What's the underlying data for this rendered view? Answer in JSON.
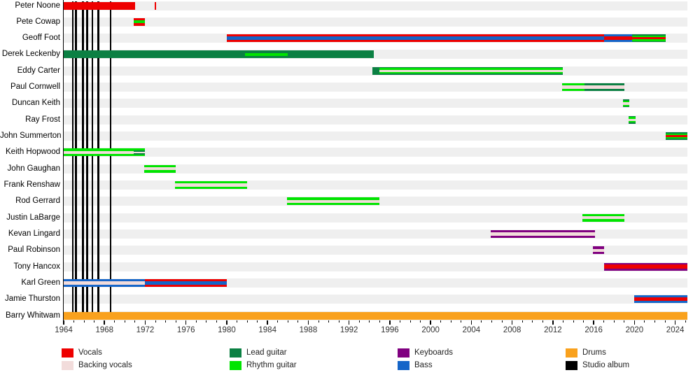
{
  "chart_data": {
    "type": "bar",
    "subtype": "band-member-timeline-gantt",
    "title": "",
    "xlabel": "",
    "ylabel": "",
    "x_axis": {
      "min": 1964,
      "max": 2025.2,
      "major_ticks": [
        1964,
        1968,
        1972,
        1976,
        1980,
        1984,
        1988,
        1992,
        1996,
        2000,
        2004,
        2008,
        2012,
        2016,
        2020,
        2024
      ],
      "minor_tick_step": 1,
      "grid": false
    },
    "roles": {
      "vocals": "#ee0000",
      "backing_vocals": "#f2dcdb",
      "lead_guitar": "#0b8043",
      "rhythm_guitar": "#00e400",
      "keyboards": "#800080",
      "bass": "#1565c8",
      "drums": "#f9a11d",
      "studio_album": "#000000"
    },
    "members": [
      {
        "name": "Peter Noone",
        "bars": [
          {
            "from": 1964.0,
            "to": 1971.0,
            "stripes": [
              [
                "vocals",
                1
              ]
            ]
          },
          {
            "from": 1972.9,
            "to": 1973.05,
            "stripes": [
              [
                "vocals",
                1
              ]
            ]
          }
        ]
      },
      {
        "name": "Pete Cowap",
        "bars": [
          {
            "from": 1970.9,
            "to": 1972.0,
            "stripes": [
              [
                "vocals",
                0.33
              ],
              [
                "rhythm_guitar",
                0.34
              ],
              [
                "vocals",
                0.33
              ]
            ]
          }
        ]
      },
      {
        "name": "Geoff Foot",
        "bars": [
          {
            "from": 1980.0,
            "to": 2017.0,
            "stripes": [
              [
                "vocals",
                0.3
              ],
              [
                "bass",
                0.4
              ],
              [
                "vocals",
                0.3
              ]
            ]
          },
          {
            "from": 2017.0,
            "to": 2019.8,
            "stripes": [
              [
                "bass",
                0.3
              ],
              [
                "vocals",
                0.4
              ],
              [
                "bass",
                0.3
              ]
            ]
          },
          {
            "from": 2019.8,
            "to": 2023.1,
            "stripes": [
              [
                "lead_guitar",
                0.14
              ],
              [
                "rhythm_guitar",
                0.2
              ],
              [
                "vocals",
                0.32
              ],
              [
                "rhythm_guitar",
                0.2
              ],
              [
                "lead_guitar",
                0.14
              ]
            ]
          }
        ]
      },
      {
        "name": "Derek Leckenby",
        "bars": [
          {
            "from": 1964.0,
            "to": 1994.4,
            "stripes": [
              [
                "lead_guitar",
                1
              ]
            ]
          },
          {
            "from": 1981.8,
            "to": 1986.0,
            "stripes": [
              [
                "lead_guitar",
                0.34
              ],
              [
                "rhythm_guitar",
                0.32
              ],
              [
                "lead_guitar",
                0.34
              ]
            ]
          }
        ]
      },
      {
        "name": "Eddy Carter",
        "bars": [
          {
            "from": 1994.3,
            "to": 1995.0,
            "stripes": [
              [
                "lead_guitar",
                1
              ]
            ]
          },
          {
            "from": 1995.0,
            "to": 2013.0,
            "stripes": [
              [
                "lead_guitar",
                0.15
              ],
              [
                "rhythm_guitar",
                0.2
              ],
              [
                "backing_vocals",
                0.3
              ],
              [
                "rhythm_guitar",
                0.2
              ],
              [
                "lead_guitar",
                0.15
              ]
            ]
          }
        ]
      },
      {
        "name": "Paul Cornwell",
        "bars": [
          {
            "from": 2012.9,
            "to": 2015.1,
            "stripes": [
              [
                "rhythm_guitar",
                0.3
              ],
              [
                "backing_vocals",
                0.4
              ],
              [
                "rhythm_guitar",
                0.3
              ]
            ]
          },
          {
            "from": 2015.1,
            "to": 2019.0,
            "stripes": [
              [
                "lead_guitar",
                0.3
              ],
              [
                "backing_vocals",
                0.4
              ],
              [
                "lead_guitar",
                0.3
              ]
            ]
          }
        ]
      },
      {
        "name": "Duncan Keith",
        "bars": [
          {
            "from": 2018.9,
            "to": 2019.5,
            "stripes": [
              [
                "lead_guitar",
                0.15
              ],
              [
                "rhythm_guitar",
                0.2
              ],
              [
                "backing_vocals",
                0.3
              ],
              [
                "rhythm_guitar",
                0.2
              ],
              [
                "lead_guitar",
                0.15
              ]
            ]
          }
        ]
      },
      {
        "name": "Ray Frost",
        "bars": [
          {
            "from": 2019.4,
            "to": 2020.1,
            "stripes": [
              [
                "lead_guitar",
                0.15
              ],
              [
                "rhythm_guitar",
                0.2
              ],
              [
                "backing_vocals",
                0.3
              ],
              [
                "rhythm_guitar",
                0.2
              ],
              [
                "lead_guitar",
                0.15
              ]
            ]
          }
        ]
      },
      {
        "name": "John Summerton",
        "bars": [
          {
            "from": 2023.1,
            "to": 2025.2,
            "stripes": [
              [
                "lead_guitar",
                0.15
              ],
              [
                "rhythm_guitar",
                0.2
              ],
              [
                "vocals",
                0.3
              ],
              [
                "rhythm_guitar",
                0.2
              ],
              [
                "lead_guitar",
                0.15
              ]
            ]
          }
        ]
      },
      {
        "name": "Keith Hopwood",
        "bars": [
          {
            "from": 1964.0,
            "to": 1970.9,
            "stripes": [
              [
                "rhythm_guitar",
                0.3
              ],
              [
                "backing_vocals",
                0.4
              ],
              [
                "rhythm_guitar",
                0.3
              ]
            ]
          },
          {
            "from": 1970.9,
            "to": 1972.0,
            "stripes": [
              [
                "rhythm_guitar",
                0.2
              ],
              [
                "lead_guitar",
                0.18
              ],
              [
                "backing_vocals",
                0.24
              ],
              [
                "lead_guitar",
                0.18
              ],
              [
                "rhythm_guitar",
                0.2
              ]
            ]
          }
        ]
      },
      {
        "name": "John Gaughan",
        "bars": [
          {
            "from": 1971.9,
            "to": 1975.0,
            "stripes": [
              [
                "rhythm_guitar",
                0.3
              ],
              [
                "backing_vocals",
                0.4
              ],
              [
                "rhythm_guitar",
                0.3
              ]
            ]
          }
        ]
      },
      {
        "name": "Frank Renshaw",
        "bars": [
          {
            "from": 1974.9,
            "to": 1982.0,
            "stripes": [
              [
                "rhythm_guitar",
                0.3
              ],
              [
                "backing_vocals",
                0.4
              ],
              [
                "rhythm_guitar",
                0.3
              ]
            ]
          }
        ]
      },
      {
        "name": "Rod Gerrard",
        "bars": [
          {
            "from": 1985.9,
            "to": 1995.0,
            "stripes": [
              [
                "rhythm_guitar",
                0.3
              ],
              [
                "backing_vocals",
                0.4
              ],
              [
                "rhythm_guitar",
                0.3
              ]
            ]
          }
        ]
      },
      {
        "name": "Justin LaBarge",
        "bars": [
          {
            "from": 2014.9,
            "to": 2019.0,
            "stripes": [
              [
                "rhythm_guitar",
                0.32
              ],
              [
                "backing_vocals",
                0.36
              ],
              [
                "rhythm_guitar",
                0.32
              ]
            ]
          }
        ]
      },
      {
        "name": "Kevan Lingard",
        "bars": [
          {
            "from": 2005.9,
            "to": 2016.1,
            "stripes": [
              [
                "keyboards",
                0.3
              ],
              [
                "backing_vocals",
                0.4
              ],
              [
                "keyboards",
                0.3
              ]
            ]
          }
        ]
      },
      {
        "name": "Paul Robinson",
        "bars": [
          {
            "from": 2015.9,
            "to": 2017.05,
            "stripes": [
              [
                "keyboards",
                0.3
              ],
              [
                "backing_vocals",
                0.4
              ],
              [
                "keyboards",
                0.3
              ]
            ]
          }
        ]
      },
      {
        "name": "Tony Hancox",
        "bars": [
          {
            "from": 2017.0,
            "to": 2025.2,
            "stripes": [
              [
                "keyboards",
                0.2
              ],
              [
                "vocals",
                0.6
              ],
              [
                "keyboards",
                0.2
              ]
            ]
          }
        ]
      },
      {
        "name": "Karl Green",
        "bars": [
          {
            "from": 1964.0,
            "to": 1972.0,
            "stripes": [
              [
                "bass",
                0.3
              ],
              [
                "backing_vocals",
                0.4
              ],
              [
                "bass",
                0.3
              ]
            ]
          },
          {
            "from": 1972.0,
            "to": 1980.0,
            "stripes": [
              [
                "vocals",
                0.3
              ],
              [
                "bass",
                0.4
              ],
              [
                "vocals",
                0.3
              ]
            ]
          }
        ]
      },
      {
        "name": "Jamie Thurston",
        "bars": [
          {
            "from": 2020.0,
            "to": 2025.2,
            "stripes": [
              [
                "bass",
                0.3
              ],
              [
                "vocals",
                0.4
              ],
              [
                "bass",
                0.3
              ]
            ]
          }
        ]
      },
      {
        "name": "Barry Whitwam",
        "bars": [
          {
            "from": 1964.0,
            "to": 2025.2,
            "stripes": [
              [
                "drums",
                1
              ]
            ]
          }
        ]
      }
    ],
    "studio_albums": [
      1964.9,
      1965.2,
      1965.9,
      1966.3,
      1966.8,
      1967.4,
      1968.6
    ],
    "legend_position": "bottom",
    "legend_columns": [
      [
        {
          "label": "Vocals",
          "role": "vocals"
        },
        {
          "label": "Backing vocals",
          "role": "backing_vocals"
        }
      ],
      [
        {
          "label": "Lead guitar",
          "role": "lead_guitar"
        },
        {
          "label": "Rhythm guitar",
          "role": "rhythm_guitar"
        }
      ],
      [
        {
          "label": "Keyboards",
          "role": "keyboards"
        },
        {
          "label": "Bass",
          "role": "bass"
        }
      ],
      [
        {
          "label": "Drums",
          "role": "drums"
        },
        {
          "label": "Studio album",
          "role": "studio_album"
        }
      ]
    ]
  }
}
